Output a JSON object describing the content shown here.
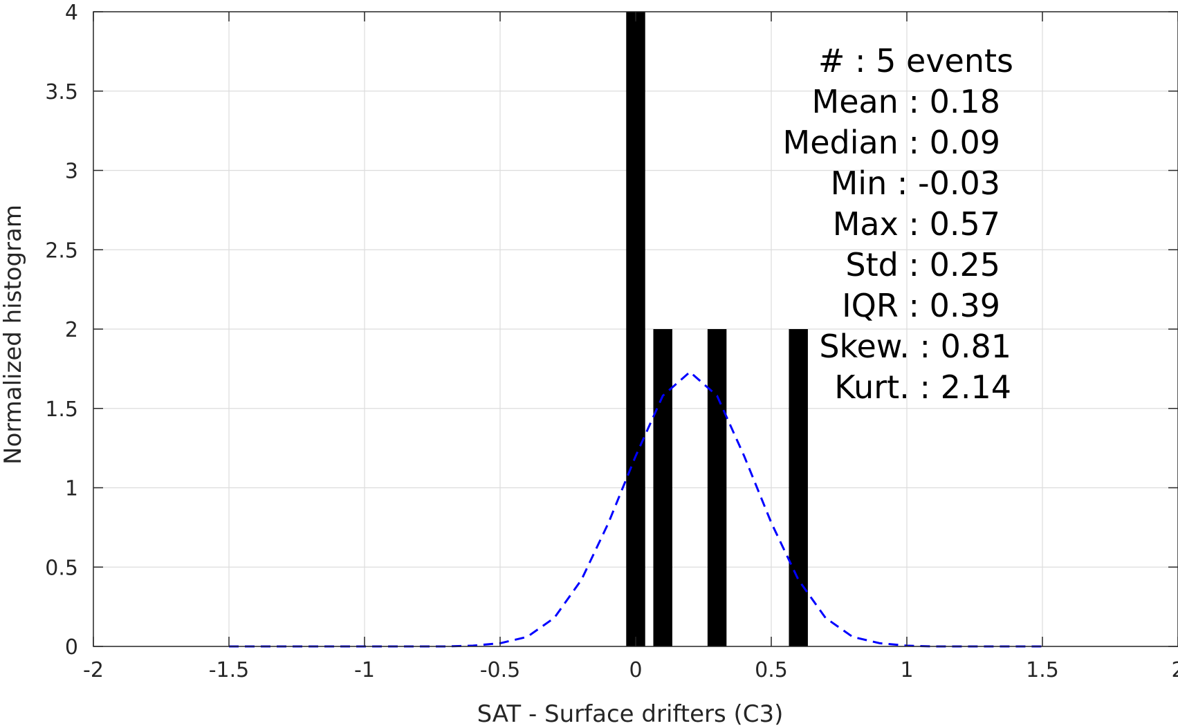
{
  "chart_data": {
    "type": "bar",
    "title": "",
    "xlabel": "SAT - Surface drifters (C3)",
    "ylabel": "Normalized histogram",
    "xlim": [
      -2,
      2
    ],
    "ylim": [
      0,
      4
    ],
    "xticks": [
      -2,
      -1.5,
      -1,
      -0.5,
      0,
      0.5,
      1,
      1.5,
      2
    ],
    "xtick_labels": [
      "-2",
      "-1.5",
      "-1",
      "-0.5",
      "0",
      "0.5",
      "1",
      "1.5",
      "2"
    ],
    "yticks": [
      0,
      0.5,
      1,
      1.5,
      2,
      2.5,
      3,
      3.5,
      4
    ],
    "ytick_labels": [
      "0",
      "0.5",
      "1",
      "1.5",
      "2",
      "2.5",
      "3",
      "3.5",
      "4"
    ],
    "grid": true,
    "bar_width": 0.07,
    "bars": [
      {
        "x": 0.0,
        "value": 4
      },
      {
        "x": 0.1,
        "value": 2
      },
      {
        "x": 0.3,
        "value": 2
      },
      {
        "x": 0.6,
        "value": 2
      }
    ],
    "fit_curve": {
      "style": "dashed",
      "color": "#0000ff",
      "x": [
        -1.5,
        -1.4,
        -1.3,
        -1.2,
        -1.1,
        -1.0,
        -0.9,
        -0.8,
        -0.7,
        -0.6,
        -0.5,
        -0.4,
        -0.3,
        -0.2,
        -0.1,
        0.0,
        0.1,
        0.2,
        0.3,
        0.4,
        0.5,
        0.6,
        0.7,
        0.8,
        0.9,
        1.0,
        1.1,
        1.2,
        1.3,
        1.4,
        1.5
      ],
      "y": [
        0.0,
        0.0,
        0.0,
        0.0,
        0.0,
        0.0,
        0.0,
        0.0,
        0.0,
        0.005,
        0.02,
        0.06,
        0.18,
        0.42,
        0.78,
        1.2,
        1.58,
        1.73,
        1.58,
        1.2,
        0.78,
        0.42,
        0.18,
        0.06,
        0.02,
        0.005,
        0.0,
        0.0,
        0.0,
        0.0,
        0.0
      ]
    },
    "stats": [
      "#  : 5 events",
      "Mean : 0.18",
      "Median : 0.09",
      "Min : -0.03",
      "Max : 0.57",
      "Std : 0.25",
      "IQR : 0.39",
      "Skew. : 0.81",
      "Kurt. : 2.14"
    ],
    "colors": {
      "bars": "#000000",
      "fit": "#0000ff",
      "grid": "#dcdcdc",
      "axis": "#262626"
    }
  }
}
